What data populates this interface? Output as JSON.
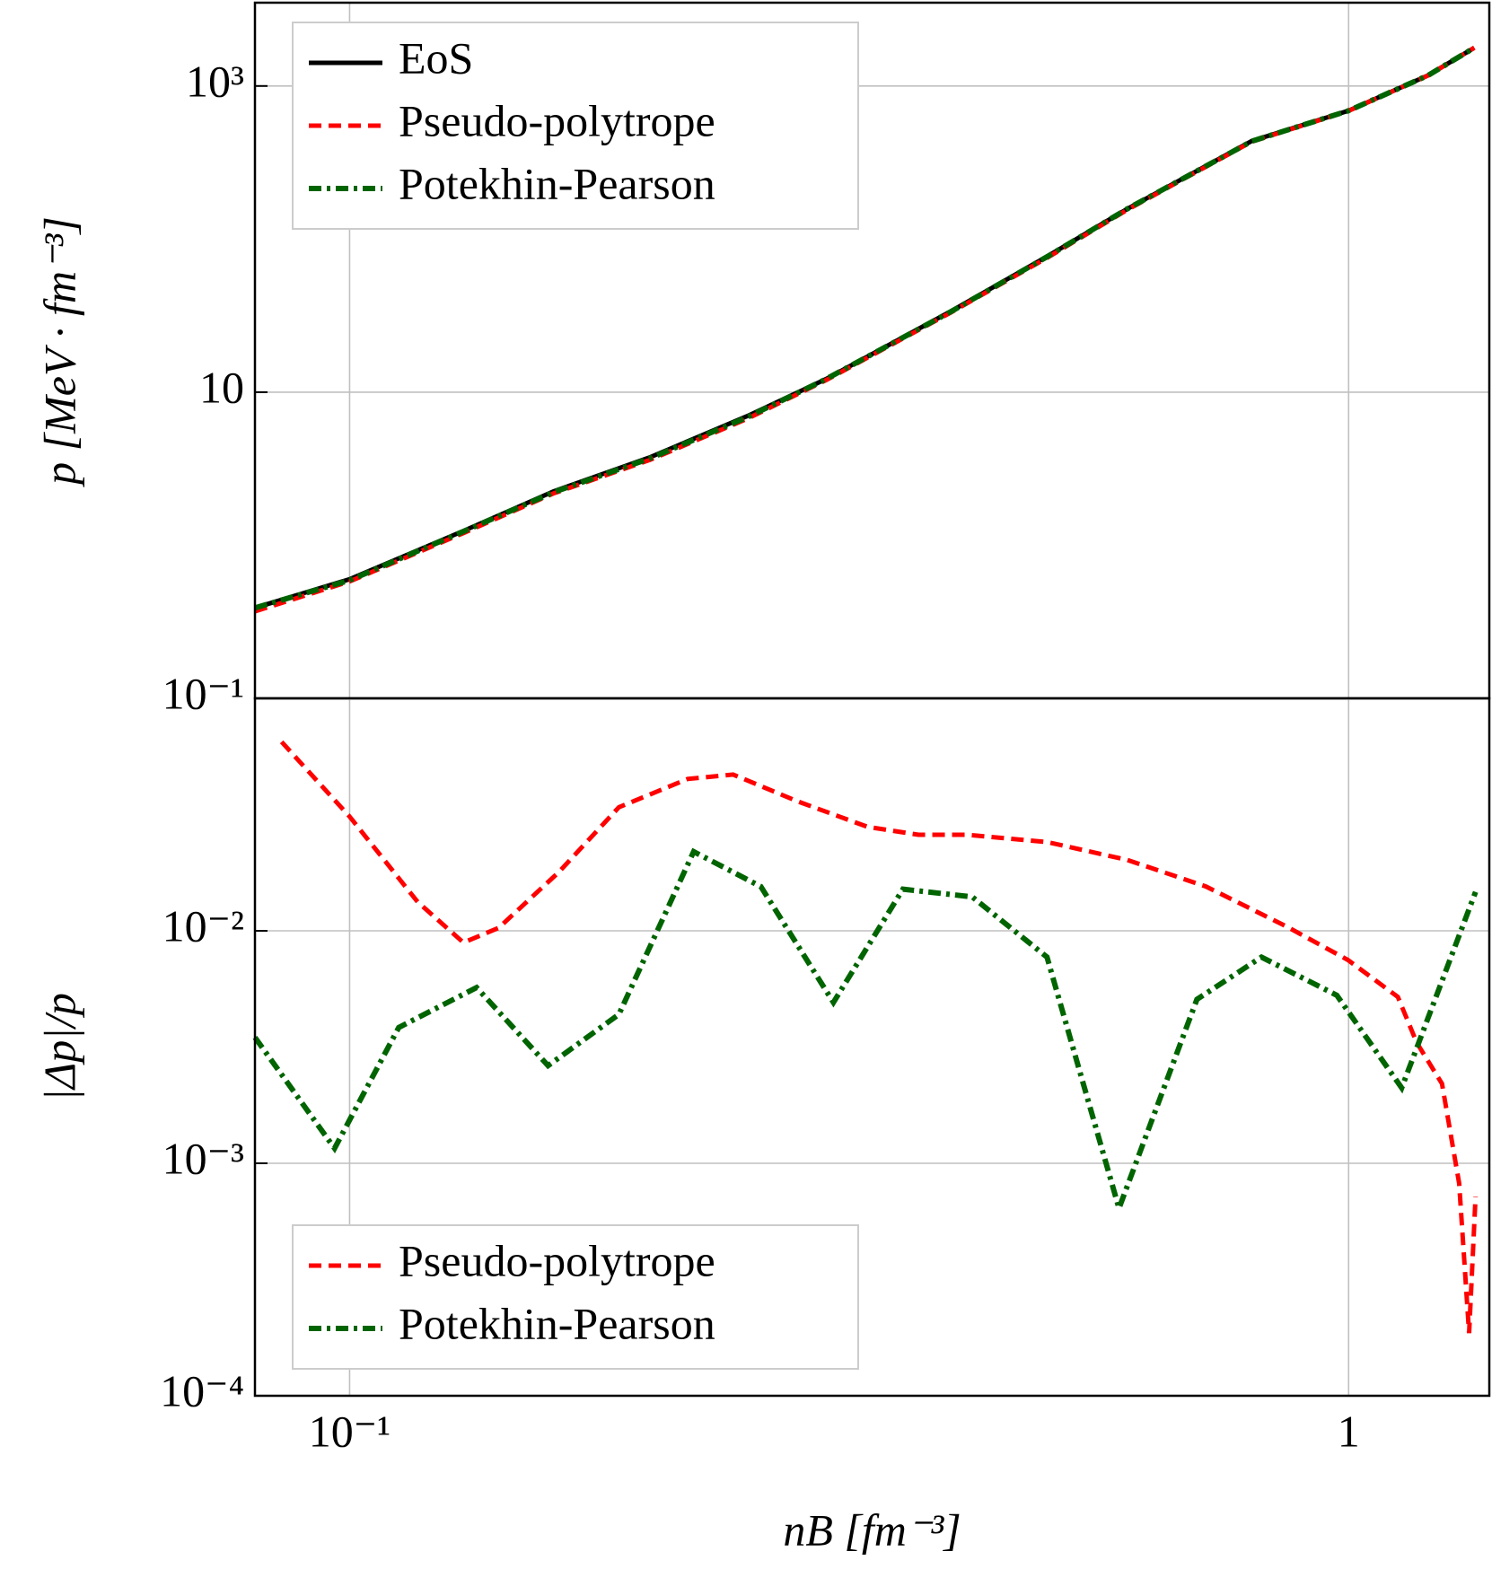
{
  "chart_data": [
    {
      "type": "line",
      "y_label": "p [MeV · fm⁻³]",
      "yscale": "log",
      "xscale": "log",
      "grid": true,
      "legend": "upper left",
      "xlim": [
        0.0804,
        1.383
      ],
      "ylim": [
        0.1,
        3500
      ],
      "yticks": [
        10,
        {
          "value": 1000,
          "label": "10³"
        }
      ],
      "series": [
        {
          "name": "EoS",
          "color": "#000000",
          "dash": "solid",
          "x": [
            0.0804,
            0.1,
            0.13,
            0.16,
            0.2,
            0.25,
            0.3,
            0.4,
            0.5,
            0.6,
            0.8,
            1.0,
            1.2,
            1.336
          ],
          "values": [
            0.39,
            0.6,
            1.24,
            2.25,
            3.76,
            6.97,
            12.2,
            33.8,
            77.5,
            157,
            437,
            690,
            1170,
            1778
          ]
        },
        {
          "name": "Pseudo-polytrope",
          "color": "#ff0000",
          "dash": "dashed",
          "x": [
            0.0804,
            0.1,
            0.13,
            0.16,
            0.2,
            0.25,
            0.3,
            0.4,
            0.5,
            0.6,
            0.8,
            1.0,
            1.2,
            1.336
          ],
          "values": [
            0.37,
            0.58,
            1.2,
            2.18,
            3.62,
            6.7,
            12.0,
            33.2,
            76.0,
            155,
            433,
            688,
            1168,
            1778
          ]
        },
        {
          "name": "Potekhin-Pearson",
          "color": "#006400",
          "dash": "dashdot",
          "x": [
            0.0804,
            0.1,
            0.13,
            0.16,
            0.2,
            0.25,
            0.3,
            0.4,
            0.5,
            0.6,
            0.8,
            1.0,
            1.2,
            1.336
          ],
          "values": [
            0.39,
            0.59,
            1.23,
            2.22,
            3.7,
            6.85,
            12.2,
            33.6,
            77.2,
            157,
            436,
            690,
            1170,
            1778
          ]
        }
      ]
    },
    {
      "type": "line",
      "x_label": "nB [fm⁻³]",
      "y_label": "|Δp|/p",
      "yscale": "log",
      "xscale": "log",
      "grid": true,
      "legend": "lower left",
      "xlim": [
        0.0804,
        1.383
      ],
      "ylim": [
        0.0001,
        0.1
      ],
      "xticks": [
        {
          "value": 0.1,
          "label": "10⁻¹"
        },
        1
      ],
      "yticks": [
        {
          "value": 0.1,
          "label": "10⁻¹"
        },
        {
          "value": 0.01,
          "label": "10⁻²"
        },
        {
          "value": 0.001,
          "label": "10⁻³"
        },
        {
          "value": 0.0001,
          "label": "10⁻⁴"
        }
      ],
      "series": [
        {
          "name": "Pseudo-polytrope",
          "color": "#ff0000",
          "dash": "dashed",
          "x": [
            0.0855,
            0.1,
            0.117,
            0.13,
            0.141,
            0.162,
            0.186,
            0.218,
            0.242,
            0.281,
            0.33,
            0.371,
            0.415,
            0.499,
            0.6,
            0.72,
            0.868,
            0.998,
            1.12,
            1.17,
            1.24,
            1.29,
            1.32,
            1.34
          ],
          "values": [
            0.065,
            0.031,
            0.0133,
            0.0089,
            0.0103,
            0.0179,
            0.034,
            0.045,
            0.047,
            0.036,
            0.028,
            0.0259,
            0.0259,
            0.0241,
            0.0202,
            0.0155,
            0.0104,
            0.0075,
            0.0052,
            0.0033,
            0.0022,
            0.00082,
            0.000186,
            0.00072
          ]
        },
        {
          "name": "Potekhin-Pearson",
          "color": "#006400",
          "dash": "dashdot",
          "x": [
            0.0804,
            0.0966,
            0.112,
            0.134,
            0.158,
            0.186,
            0.221,
            0.258,
            0.305,
            0.358,
            0.42,
            0.499,
            0.589,
            0.705,
            0.818,
            0.973,
            1.13,
            1.34
          ],
          "values": [
            0.00348,
            0.00116,
            0.00384,
            0.0057,
            0.00263,
            0.00437,
            0.0219,
            0.0155,
            0.00492,
            0.0151,
            0.014,
            0.00771,
            0.00064,
            0.00507,
            0.00771,
            0.00528,
            0.00211,
            0.0147
          ]
        }
      ]
    }
  ]
}
